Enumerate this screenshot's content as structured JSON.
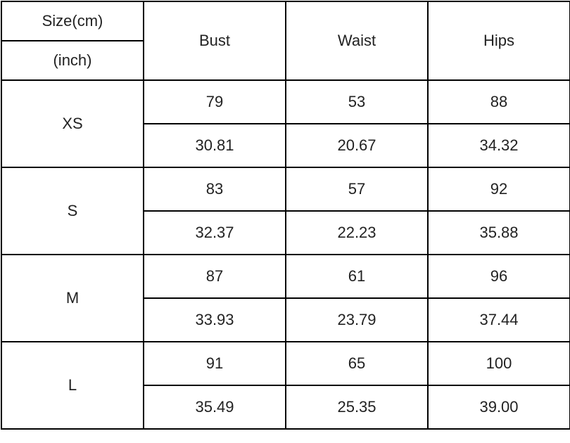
{
  "header": {
    "size_cm": "Size(cm)",
    "size_inch": "(inch)",
    "columns": [
      "Bust",
      "Waist",
      "Hips"
    ]
  },
  "rows": [
    {
      "size": "XS",
      "cm": [
        "79",
        "53",
        "88"
      ],
      "inch": [
        "30.81",
        "20.67",
        "34.32"
      ]
    },
    {
      "size": "S",
      "cm": [
        "83",
        "57",
        "92"
      ],
      "inch": [
        "32.37",
        "22.23",
        "35.88"
      ]
    },
    {
      "size": "M",
      "cm": [
        "87",
        "61",
        "96"
      ],
      "inch": [
        "33.93",
        "23.79",
        "37.44"
      ]
    },
    {
      "size": "L",
      "cm": [
        "91",
        "65",
        "100"
      ],
      "inch": [
        "35.49",
        "25.35",
        "39.00"
      ]
    }
  ]
}
